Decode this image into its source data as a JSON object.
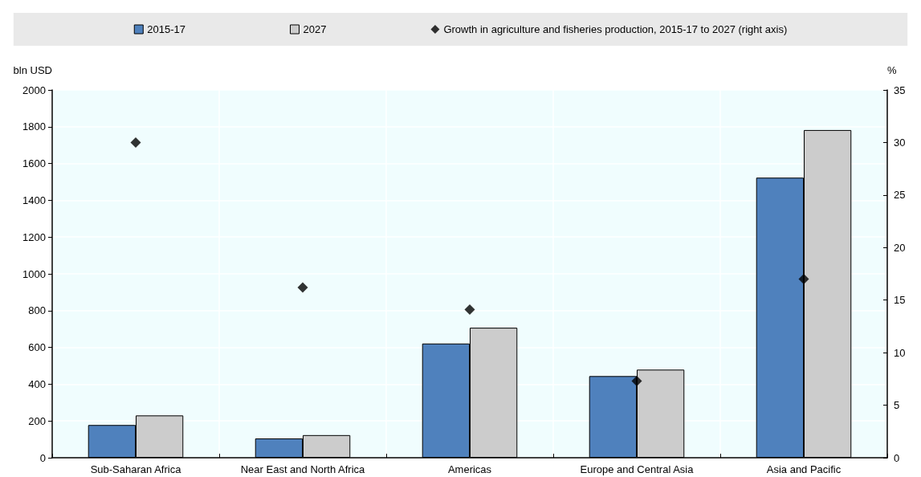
{
  "chart_data": {
    "type": "bar",
    "categories": [
      "Sub-Saharan Africa",
      "Near East and North Africa",
      "Americas",
      "Europe and Central Asia",
      "Asia and Pacific"
    ],
    "series": [
      {
        "name": "2015-17",
        "color": "#4f81bd",
        "values": [
          178,
          105,
          621,
          444,
          1523
        ]
      },
      {
        "name": "2027",
        "color": "#cccccc",
        "values": [
          230,
          123,
          707,
          479,
          1782
        ]
      },
      {
        "name": "Growth in agriculture and fisheries production, 2015-17 to 2027 (right axis)",
        "type": "scatter",
        "axis": "y2",
        "marker": "diamond",
        "color": "#000000",
        "values": [
          30.0,
          16.2,
          14.1,
          7.3,
          17.0
        ]
      }
    ],
    "ylabel": "bln USD",
    "y2label": "%",
    "ylim": [
      0,
      2000
    ],
    "yticks": [
      0,
      200,
      400,
      600,
      800,
      1000,
      1200,
      1400,
      1600,
      1800,
      2000
    ],
    "y2lim": [
      0,
      35
    ],
    "y2ticks": [
      0,
      5,
      10,
      15,
      20,
      25,
      30,
      35
    ],
    "grid": true,
    "legend": "top"
  }
}
